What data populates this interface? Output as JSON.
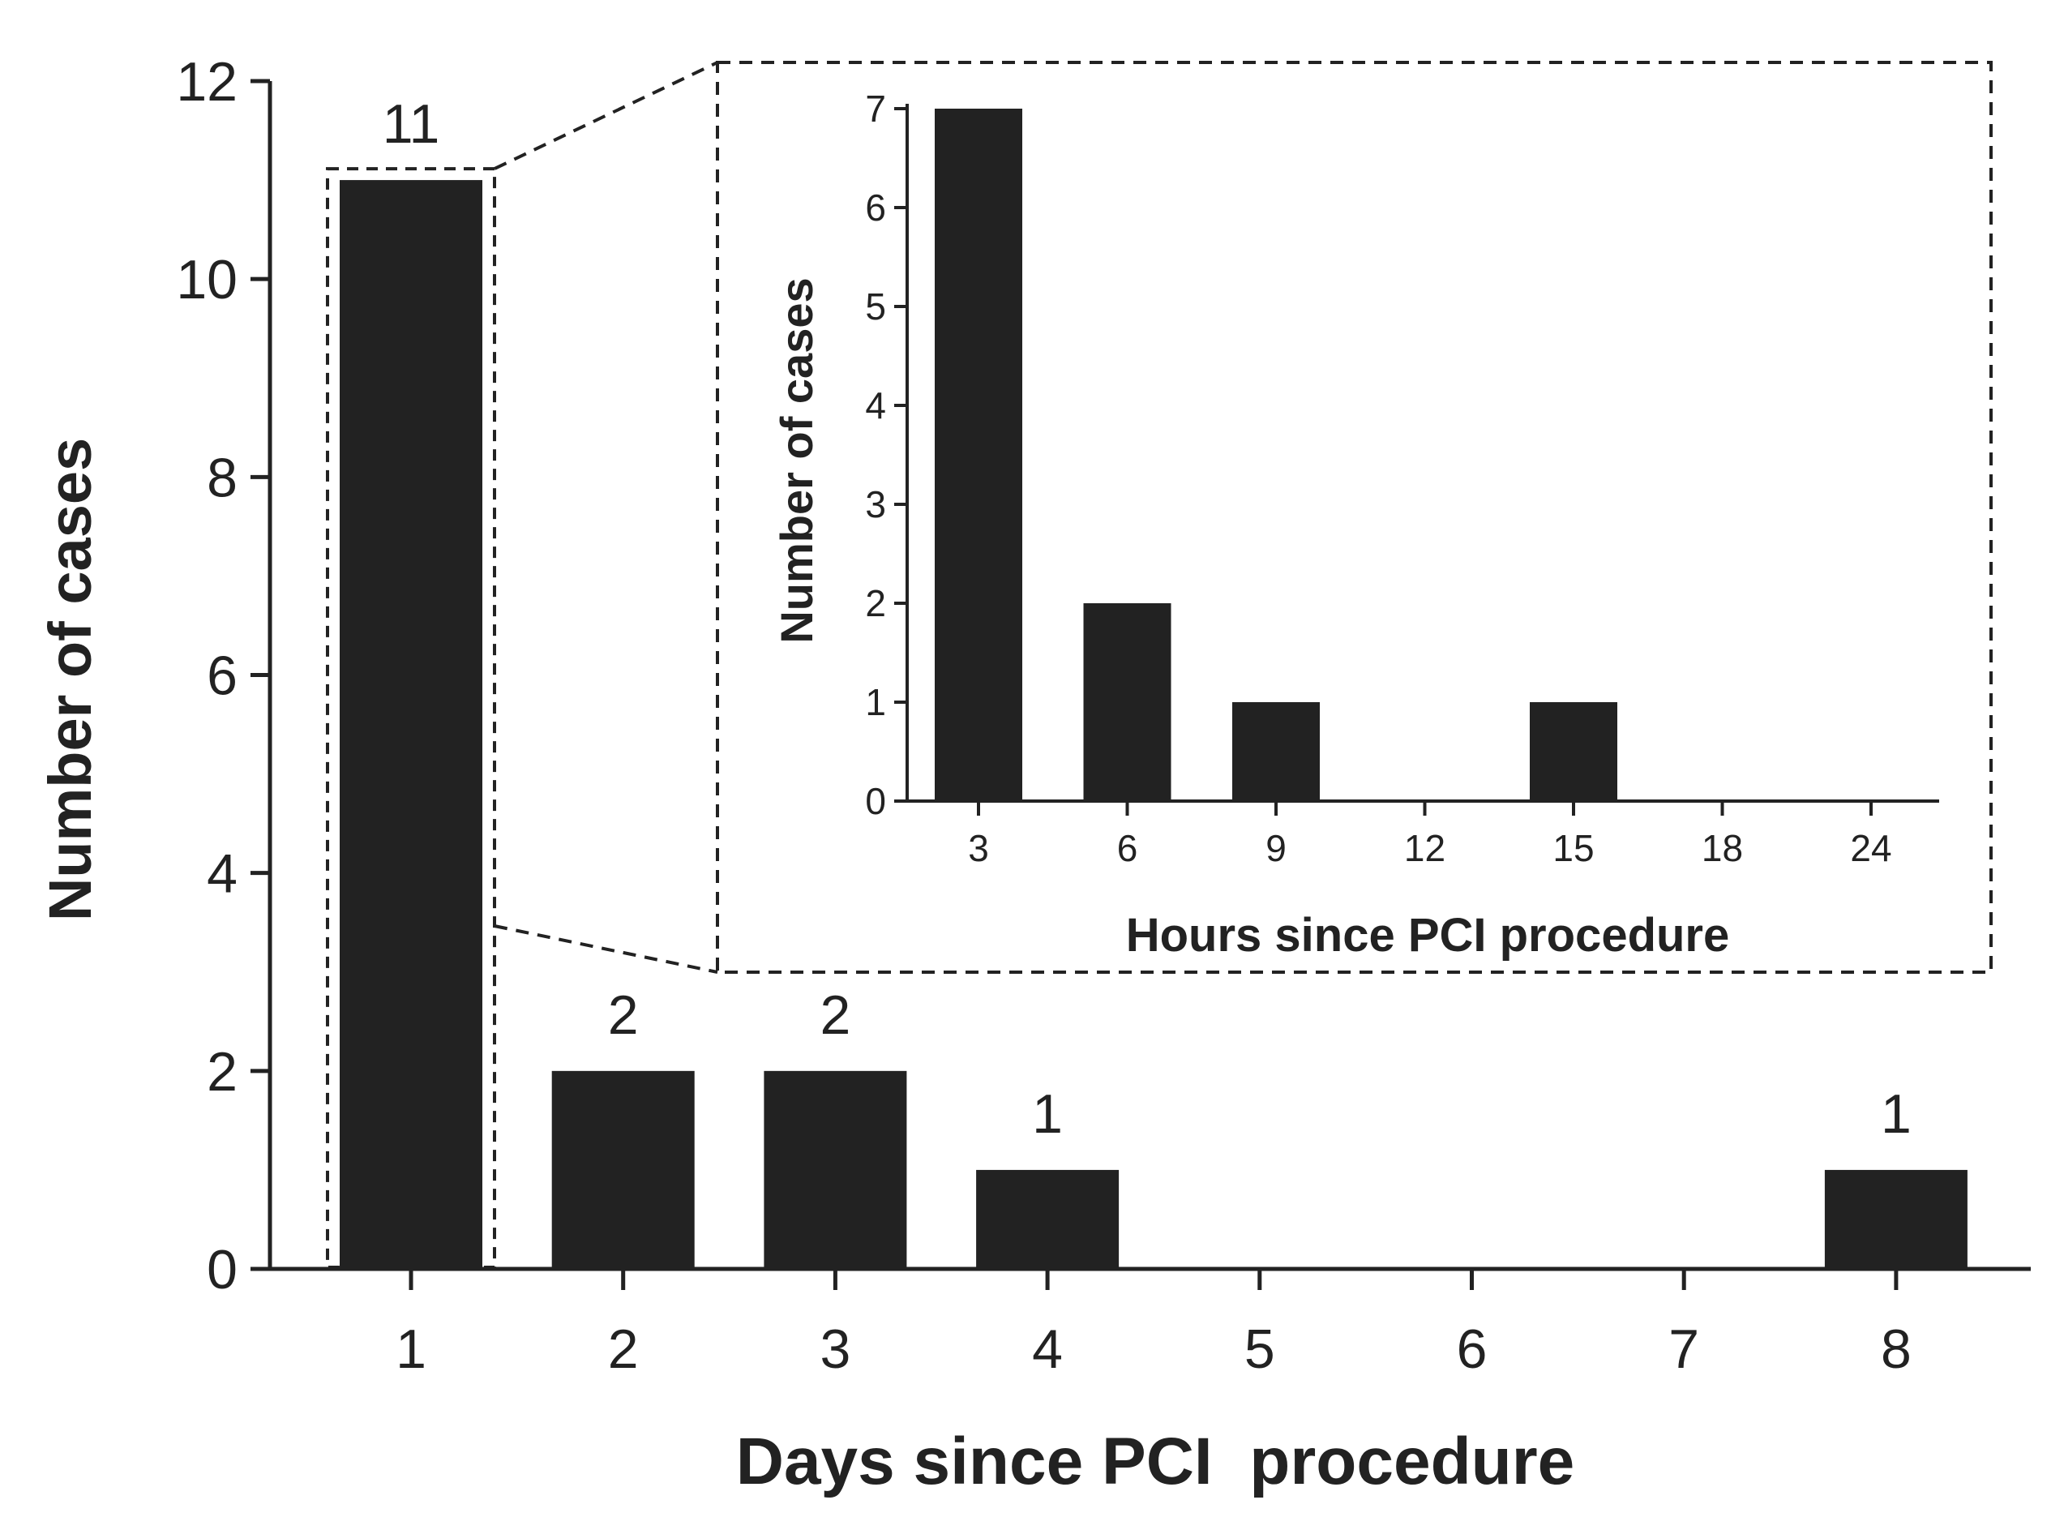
{
  "chart_data": [
    {
      "id": "main",
      "type": "bar",
      "categories": [
        "1",
        "2",
        "3",
        "4",
        "5",
        "6",
        "7",
        "8"
      ],
      "values": [
        11,
        2,
        2,
        1,
        0,
        0,
        0,
        1
      ],
      "data_labels": [
        "11",
        "2",
        "2",
        "1",
        "",
        "",
        "",
        "1"
      ],
      "xlabel": "Days since PCI  procedure",
      "ylabel": "Number of  cases",
      "ylim": [
        0,
        12
      ],
      "yticks": [
        0,
        2,
        4,
        6,
        8,
        10,
        12
      ],
      "grid": false,
      "bar_color": "#222222",
      "zoom_highlight_category": "1"
    },
    {
      "id": "inset",
      "type": "bar",
      "categories": [
        "3",
        "6",
        "9",
        "12",
        "15",
        "18",
        "24"
      ],
      "values": [
        7,
        2,
        1,
        0,
        1,
        0,
        0
      ],
      "xlabel": "Hours since PCI procedure",
      "ylabel": "Number of  cases",
      "ylim": [
        0,
        7
      ],
      "yticks": [
        0,
        1,
        2,
        3,
        4,
        5,
        6,
        7
      ],
      "grid": false,
      "bar_color": "#222222"
    }
  ]
}
